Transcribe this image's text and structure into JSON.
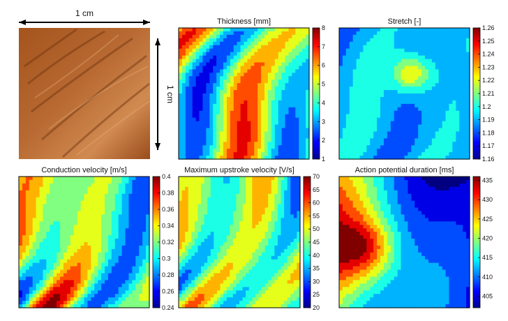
{
  "photo": {
    "scale_horizontal_label": "1 cm",
    "scale_vertical_label": "1 cm"
  },
  "chart_data": [
    {
      "type": "heatmap",
      "title": "Thickness [mm]",
      "colorbar": {
        "range": [
          1,
          8
        ],
        "ticks": [
          "1",
          "2",
          "3",
          "4",
          "5",
          "6",
          "7",
          "8"
        ]
      },
      "grid": false
    },
    {
      "type": "heatmap",
      "title": "Stretch [-]",
      "colorbar": {
        "range": [
          1.16,
          1.26
        ],
        "ticks": [
          "1.16",
          "1.17",
          "1.18",
          "1.19",
          "1.2",
          "1.21",
          "1.22",
          "1.23",
          "1.24",
          "1.25",
          "1.26"
        ]
      },
      "grid": false
    },
    {
      "type": "heatmap",
      "title": "Conduction velocity [m/s]",
      "colorbar": {
        "range": [
          0.24,
          0.4
        ],
        "ticks": [
          "0.24",
          "0.26",
          "0.28",
          "0.3",
          "0.32",
          "0.34",
          "0.36",
          "0.38",
          "0.4"
        ]
      },
      "grid": false
    },
    {
      "type": "heatmap",
      "title": "Maximum upstroke velocity [V/s]",
      "colorbar": {
        "range": [
          20,
          70
        ],
        "ticks": [
          "20",
          "25",
          "30",
          "35",
          "40",
          "45",
          "50",
          "55",
          "60",
          "65",
          "70"
        ]
      },
      "grid": false
    },
    {
      "type": "heatmap",
      "title": "Action potential duration [ms]",
      "colorbar": {
        "range": [
          402,
          436
        ],
        "ticks": [
          "405",
          "410",
          "415",
          "420",
          "425",
          "430",
          "435"
        ]
      },
      "grid": false
    }
  ]
}
